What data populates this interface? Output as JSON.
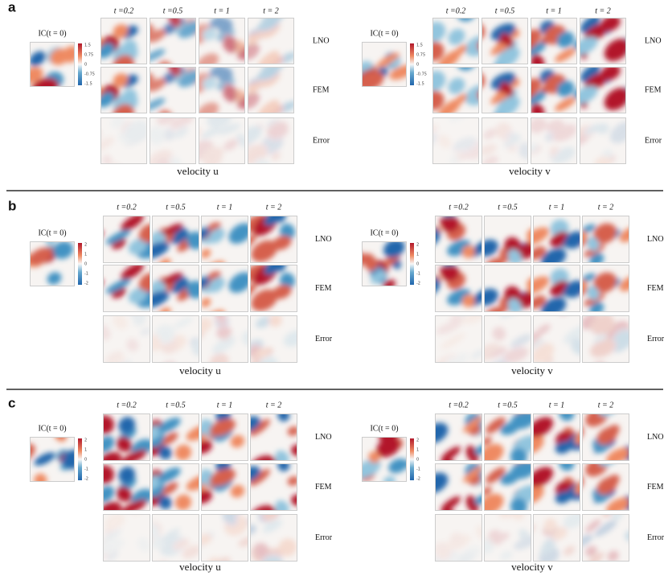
{
  "panels": [
    {
      "label": "a",
      "subfigures": [
        {
          "ic_label": "IC(t = 0)",
          "colorbar_ticks": [
            "1.5",
            "0.75",
            "0",
            "-0.75",
            "-1.5"
          ],
          "times": [
            "t =0.2",
            "t =0.5",
            "t = 1",
            "t = 2"
          ],
          "rows": [
            "LNO",
            "FEM",
            "Error"
          ],
          "caption": "velocity u"
        },
        {
          "ic_label": "IC(t = 0)",
          "colorbar_ticks": [
            "1.5",
            "0.75",
            "0",
            "-0.75",
            "-1.5"
          ],
          "times": [
            "t =0.2",
            "t =0.5",
            "t = 1",
            "t = 2"
          ],
          "rows": [
            "LNO",
            "FEM",
            "Error"
          ],
          "caption": "velocity v"
        }
      ]
    },
    {
      "label": "b",
      "subfigures": [
        {
          "ic_label": "IC(t = 0)",
          "colorbar_ticks": [
            "2",
            "1",
            "0",
            "-1",
            "-2"
          ],
          "times": [
            "t =0.2",
            "t =0.5",
            "t = 1",
            "t = 2"
          ],
          "rows": [
            "LNO",
            "FEM",
            "Error"
          ],
          "caption": "velocity u"
        },
        {
          "ic_label": "IC(t = 0)",
          "colorbar_ticks": [
            "2",
            "1",
            "0",
            "-1",
            "-2"
          ],
          "times": [
            "t =0.2",
            "t =0.5",
            "t = 1",
            "t = 2"
          ],
          "rows": [
            "LNO",
            "FEM",
            "Error"
          ],
          "caption": "velocity v"
        }
      ]
    },
    {
      "label": "c",
      "subfigures": [
        {
          "ic_label": "IC(t = 0)",
          "colorbar_ticks": [
            "2",
            "1",
            "0",
            "-1",
            "-2"
          ],
          "times": [
            "t =0.2",
            "t =0.5",
            "t = 1",
            "t = 2"
          ],
          "rows": [
            "LNO",
            "FEM",
            "Error"
          ],
          "caption": "velocity u"
        },
        {
          "ic_label": "IC(t = 0)",
          "colorbar_ticks": [
            "2",
            "1",
            "0",
            "-1",
            "-2"
          ],
          "times": [
            "t =0.2",
            "t =0.5",
            "t = 1",
            "t = 2"
          ],
          "rows": [
            "LNO",
            "FEM",
            "Error"
          ],
          "caption": "velocity v"
        }
      ]
    }
  ]
}
